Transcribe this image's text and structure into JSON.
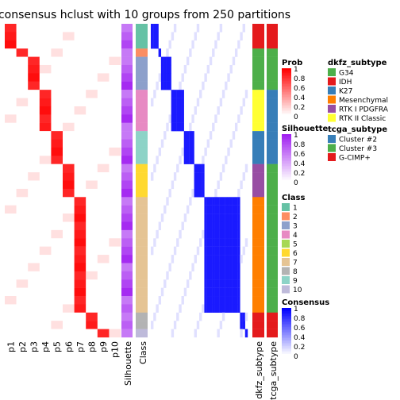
{
  "chart_data": {
    "type": "heatmap",
    "title": "consensus hclust with 10 groups from 250 partitions",
    "prob_columns": [
      "p1",
      "p2",
      "p3",
      "p4",
      "p5",
      "p6",
      "p7",
      "p8",
      "p9",
      "p10"
    ],
    "annotation_columns": [
      "Silhouette",
      "Class"
    ],
    "side_annotation_columns": [
      "dkfz_subtype",
      "tcga_subtype"
    ],
    "class_blocks": [
      {
        "class": "1",
        "rows": 3,
        "prob_col": 1
      },
      {
        "class": "2",
        "rows": 1,
        "prob_col": 2
      },
      {
        "class": "3",
        "rows": 4,
        "prob_col": 3
      },
      {
        "class": "4",
        "rows": 5,
        "prob_col": 4
      },
      {
        "class": "9",
        "rows": 4,
        "prob_col": 5
      },
      {
        "class": "6",
        "rows": 4,
        "prob_col": 6
      },
      {
        "class": "7",
        "rows": 14,
        "prob_col": 7
      },
      {
        "class": "8",
        "rows": 2,
        "prob_col": 8
      },
      {
        "class": "10",
        "rows": 1,
        "prob_col": 9
      }
    ],
    "legends": {
      "prob": {
        "title": "Prob",
        "ticks": [
          "1",
          "0.8",
          "0.6",
          "0.4",
          "0.2",
          "0"
        ]
      },
      "silhouette": {
        "title": "Silhouette",
        "ticks": [
          "1",
          "0.8",
          "0.6",
          "0.4",
          "0.2",
          "0"
        ]
      },
      "class": {
        "title": "Class",
        "items": [
          {
            "label": "1",
            "color": "#66C2A5"
          },
          {
            "label": "2",
            "color": "#FC8D62"
          },
          {
            "label": "3",
            "color": "#8DA0CB"
          },
          {
            "label": "4",
            "color": "#E78AC3"
          },
          {
            "label": "5",
            "color": "#A6D854"
          },
          {
            "label": "6",
            "color": "#FFD92F"
          },
          {
            "label": "7",
            "color": "#E5C494"
          },
          {
            "label": "8",
            "color": "#B3B3B3"
          },
          {
            "label": "9",
            "color": "#8DD3C7"
          },
          {
            "label": "10",
            "color": "#BEBADA"
          }
        ]
      },
      "consensus": {
        "title": "Consensus",
        "ticks": [
          "1",
          "0.8",
          "0.6",
          "0.4",
          "0.2",
          "0"
        ]
      },
      "dkfz_subtype": {
        "title": "dkfz_subtype",
        "items": [
          {
            "label": "G34",
            "color": "#4DAF4A"
          },
          {
            "label": "IDH",
            "color": "#E41A1C"
          },
          {
            "label": "K27",
            "color": "#377EB8"
          },
          {
            "label": "Mesenchymal",
            "color": "#FF7F00"
          },
          {
            "label": "RTK I PDGFRA",
            "color": "#984EA3"
          },
          {
            "label": "RTK II Classic",
            "color": "#FFFF33"
          }
        ]
      },
      "tcga_subtype": {
        "title": "tcga_subtype",
        "items": [
          {
            "label": "Cluster #2",
            "color": "#377EB8"
          },
          {
            "label": "Cluster #3",
            "color": "#4DAF4A"
          },
          {
            "label": "G-CIMP+",
            "color": "#E41A1C"
          }
        ]
      }
    }
  }
}
